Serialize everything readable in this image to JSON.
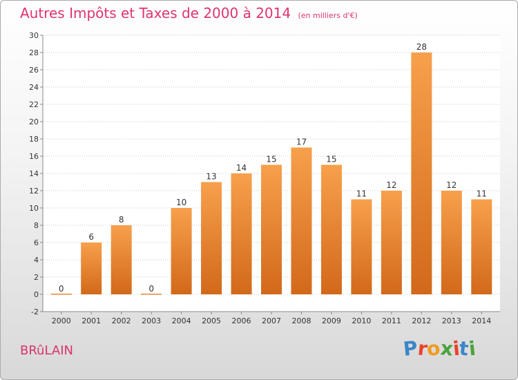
{
  "header": {
    "title": "Autres Impôts et Taxes de 2000 à 2014",
    "unit": "(en milliers d'€)"
  },
  "footer": {
    "commune": "BRûLAIN",
    "brand": "Proxiti"
  },
  "colors": {
    "title": "#e0336e",
    "bar_top": "#f7a04c",
    "bar_bottom": "#d2691a",
    "brand_letters": [
      "#3a86c8",
      "#e8442e",
      "#f29a1e",
      "#4aa33a",
      "#e8442e",
      "#3a86c8",
      "#4aa33a"
    ]
  },
  "chart_data": {
    "type": "bar",
    "categories": [
      "2000",
      "2001",
      "2002",
      "2003",
      "2004",
      "2005",
      "2006",
      "2007",
      "2008",
      "2009",
      "2010",
      "2011",
      "2012",
      "2013",
      "2014"
    ],
    "values": [
      0,
      6,
      8,
      0,
      10,
      13,
      14,
      15,
      17,
      15,
      11,
      12,
      28,
      12,
      11
    ],
    "data_labels": [
      "0",
      "6",
      "8",
      "0",
      "10",
      "13",
      "14",
      "15",
      "17",
      "15",
      "11",
      "12",
      "28",
      "12",
      "11"
    ],
    "ylim": [
      -2,
      30
    ],
    "yticks": [
      -2,
      0,
      2,
      4,
      6,
      8,
      10,
      12,
      14,
      16,
      18,
      20,
      22,
      24,
      26,
      28,
      30
    ],
    "grid": "horizontal-dotted",
    "legend": "none"
  }
}
